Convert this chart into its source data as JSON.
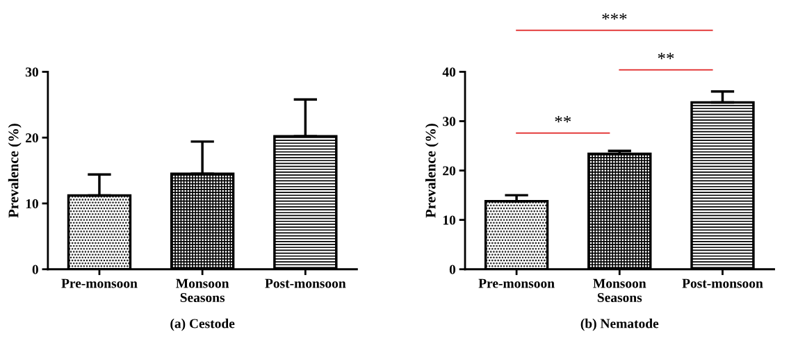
{
  "chart_data": [
    {
      "type": "bar",
      "title": "(a) Cestode",
      "xlabel": "Seasons",
      "ylabel": "Prevalence (%)",
      "categories": [
        "Pre-monsoon",
        "Monsoon",
        "Post-monsoon"
      ],
      "values": [
        11.2,
        14.5,
        20.2
      ],
      "errors": [
        [
          11.2,
          14.4
        ],
        [
          14.5,
          19.4
        ],
        [
          20.2,
          25.8
        ]
      ],
      "color": "#000000",
      "ylim": [
        0,
        30
      ],
      "yticks": [
        0,
        10,
        20,
        30
      ],
      "grid": false,
      "legend": false
    },
    {
      "type": "bar",
      "title": "(b) Nematode",
      "xlabel": "Seasons",
      "ylabel": "Prevalence (%)",
      "categories": [
        "Pre-monsoon",
        "Monsoon",
        "Post-monsoon"
      ],
      "values": [
        13.8,
        23.4,
        33.8
      ],
      "errors": [
        [
          13.8,
          15.0
        ],
        [
          23.4,
          24.0
        ],
        [
          33.8,
          36.0
        ]
      ],
      "color": "#000000",
      "ylim": [
        0,
        40
      ],
      "yticks": [
        0,
        10,
        20,
        30,
        40
      ],
      "grid": false,
      "legend": false,
      "annotations": [
        "**",
        "**",
        "***"
      ]
    }
  ]
}
